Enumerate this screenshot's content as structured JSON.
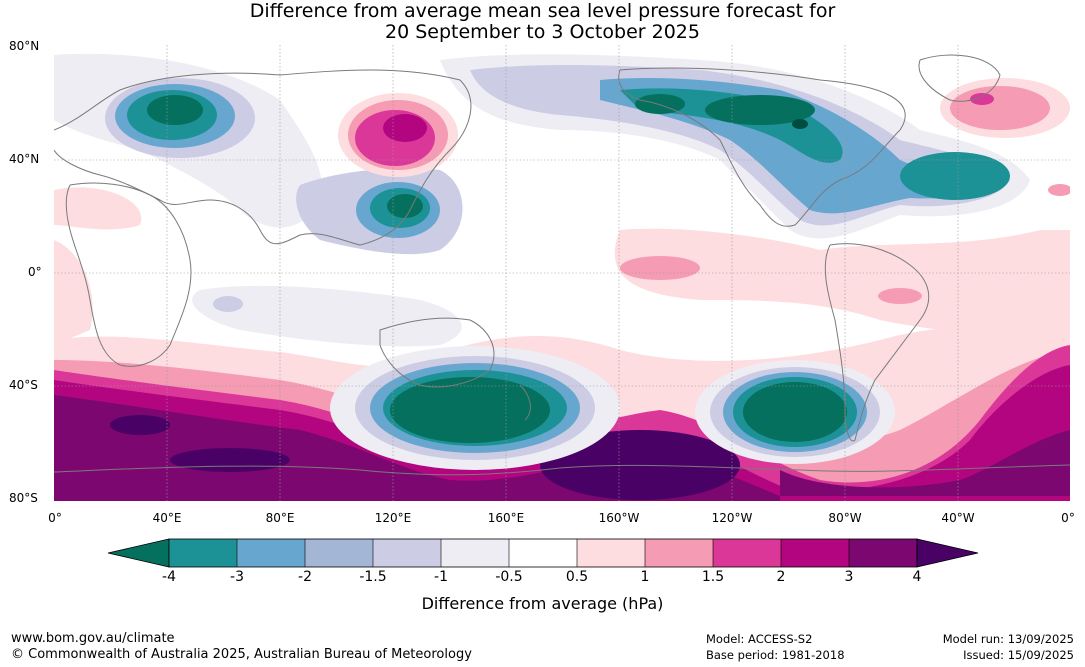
{
  "title_line1": "Difference from average mean sea level pressure forecast for",
  "title_line2": "20 September to 3 October 2025",
  "lat_labels": [
    "80°N",
    "40°N",
    "0°",
    "40°S",
    "80°S"
  ],
  "lon_labels": [
    "0°",
    "40°E",
    "80°E",
    "120°E",
    "160°E",
    "160°W",
    "120°W",
    "80°W",
    "40°W",
    "0°"
  ],
  "colorbar": {
    "label": "Difference from average (hPa)",
    "ticks": [
      "-4",
      "-3",
      "-2",
      "-1.5",
      "-1",
      "-0.5",
      "0.5",
      "1",
      "1.5",
      "2",
      "3",
      "4"
    ],
    "colors": [
      "#05705e",
      "#1c9196",
      "#67a7cf",
      "#a3b6d6",
      "#cccde5",
      "#eeedf4",
      "#ffffff",
      "#fddde0",
      "#f59bb3",
      "#da3798",
      "#b3057f",
      "#7d0771",
      "#4a0165"
    ]
  },
  "footer": {
    "website": "www.bom.gov.au/climate",
    "copyright": "© Commonwealth of Australia 2025, Australian Bureau of Meteorology",
    "model": "Model: ACCESS-S2",
    "base_period": "Base period: 1981-2018",
    "model_run": "Model run: 13/09/2025",
    "issued": "Issued: 15/09/2025"
  }
}
